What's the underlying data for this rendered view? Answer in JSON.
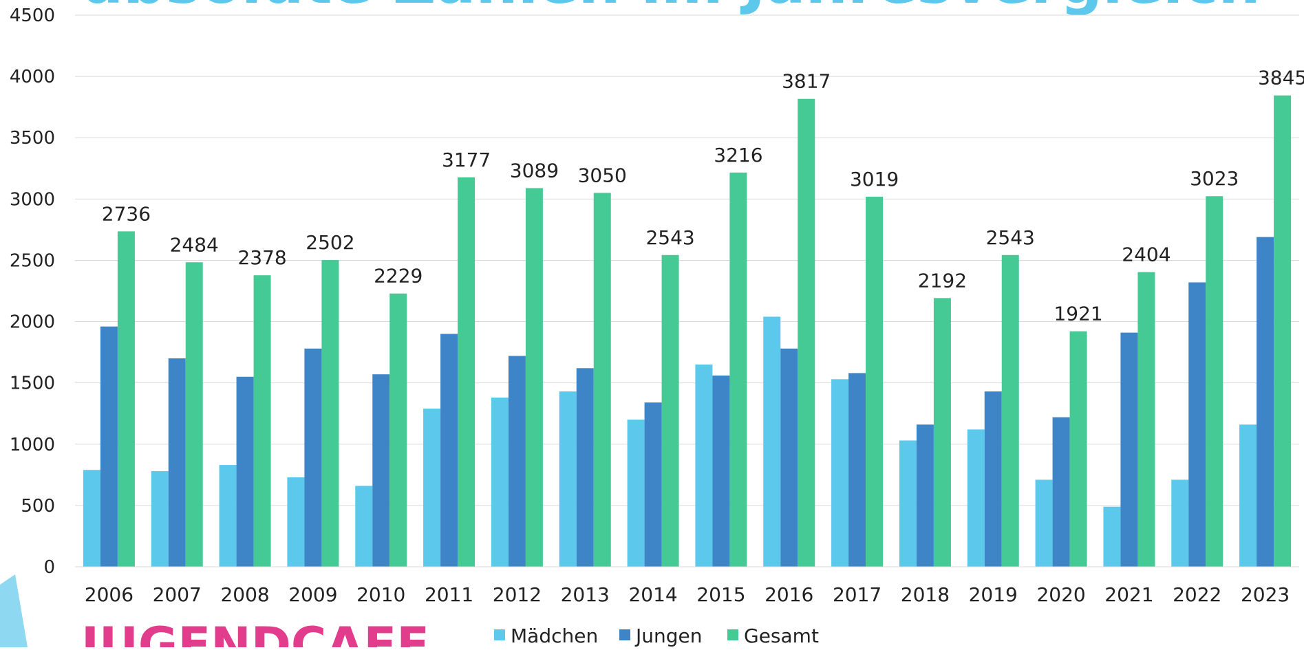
{
  "chart_data": {
    "type": "bar",
    "title": "absolute Zahlen im Jahresvergleich",
    "logo": "JUGENDCAFE",
    "categories": [
      "2006",
      "2007",
      "2008",
      "2009",
      "2010",
      "2011",
      "2012",
      "2013",
      "2014",
      "2015",
      "2016",
      "2017",
      "2018",
      "2019",
      "2020",
      "2021",
      "2022",
      "2023"
    ],
    "series": [
      {
        "name": "Mädchen",
        "color": "#5bc8ec",
        "values": [
          790,
          780,
          830,
          730,
          660,
          1290,
          1380,
          1430,
          1200,
          1650,
          2040,
          1530,
          1030,
          1120,
          710,
          490,
          710,
          1160
        ]
      },
      {
        "name": "Jungen",
        "color": "#3d85c6",
        "values": [
          1960,
          1700,
          1550,
          1780,
          1570,
          1900,
          1720,
          1620,
          1340,
          1560,
          1780,
          1580,
          1160,
          1430,
          1220,
          1910,
          2320,
          2690
        ]
      },
      {
        "name": "Gesamt",
        "color": "#45c995",
        "values": [
          2736,
          2484,
          2378,
          2502,
          2229,
          3177,
          3089,
          3050,
          2543,
          3216,
          3817,
          3019,
          2192,
          2543,
          1921,
          2404,
          3023,
          3845
        ],
        "show_labels": true
      }
    ],
    "ylim": [
      0,
      4500
    ],
    "yticks": [
      0,
      500,
      1000,
      1500,
      2000,
      2500,
      3000,
      3500,
      4000,
      4500
    ],
    "grid": true,
    "legend": "bottom"
  }
}
